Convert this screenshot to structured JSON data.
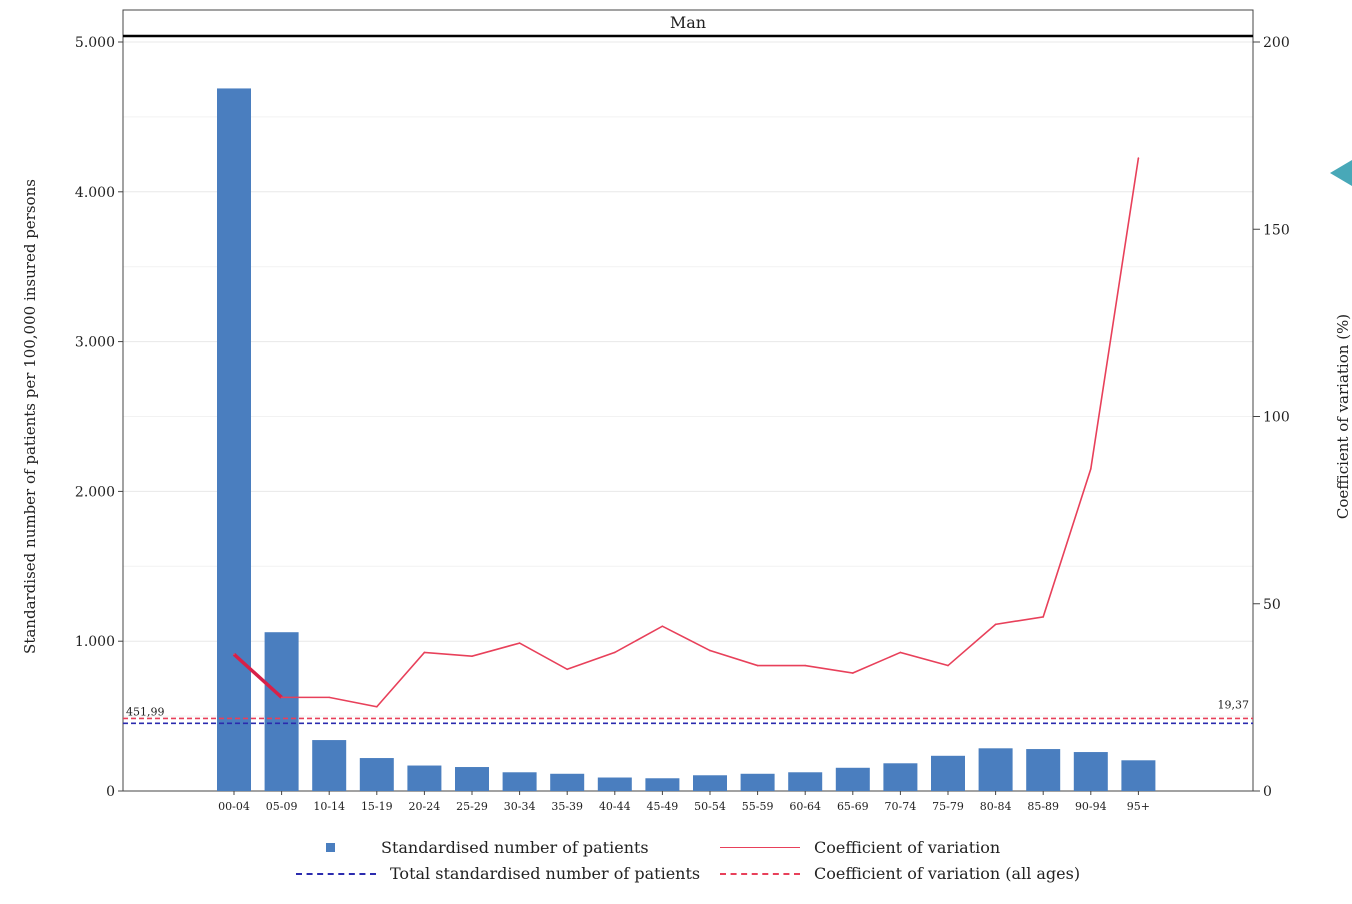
{
  "chart_data": {
    "type": "bar",
    "title": "Man",
    "categories": [
      "00-04",
      "05-09",
      "10-14",
      "15-19",
      "20-24",
      "25-29",
      "30-34",
      "35-39",
      "40-44",
      "45-49",
      "50-54",
      "55-59",
      "60-64",
      "65-69",
      "70-74",
      "75-79",
      "80-84",
      "85-89",
      "90-94",
      "95+"
    ],
    "series": [
      {
        "name": "Standardised number of patients",
        "type": "bar",
        "axis": "left",
        "color": "#4A7EBF",
        "values": [
          4690,
          1060,
          340,
          220,
          170,
          160,
          125,
          115,
          90,
          85,
          105,
          115,
          125,
          155,
          185,
          235,
          285,
          280,
          260,
          205
        ]
      },
      {
        "name": "Coefficient of variation",
        "type": "line",
        "axis": "right",
        "color": "#E8405A",
        "values": [
          36.5,
          25,
          25,
          22.5,
          37,
          36,
          39.5,
          32.5,
          37,
          44,
          37.5,
          33.5,
          33.5,
          31.5,
          37,
          33.5,
          44.5,
          46.5,
          86,
          169
        ]
      }
    ],
    "reference_lines": [
      {
        "name": "Total standardised number of patients",
        "axis": "left",
        "value": 451.99,
        "label": "451,99",
        "color": "#2B2BAE"
      },
      {
        "name": "Coefficient of variation (all ages)",
        "axis": "right",
        "value": 19.37,
        "label": "19,37",
        "color": "#E8405A"
      }
    ],
    "ylabel": "Standardised number of patients per 100,000 insured persons",
    "ylabel_right": "Coefficient of variation (%)",
    "ylim": [
      0,
      5000
    ],
    "ylim_right": [
      0,
      200
    ],
    "yticks": [
      0,
      1000,
      2000,
      3000,
      4000,
      5000
    ],
    "ytick_labels": [
      "0",
      "1.000",
      "2.000",
      "3.000",
      "4.000",
      "5.000"
    ],
    "yticks_right": [
      0,
      50,
      100,
      150,
      200
    ],
    "ytick_labels_right": [
      "0",
      "50",
      "100",
      "150",
      "200"
    ],
    "grid": true,
    "legend_position": "bottom"
  },
  "legend": {
    "bar_label": "Standardised number of patients",
    "line_label": "Coefficient of variation",
    "total_label": "Total standardised number of patients",
    "cov_all_label": "Coefficient of variation (all ages)"
  }
}
